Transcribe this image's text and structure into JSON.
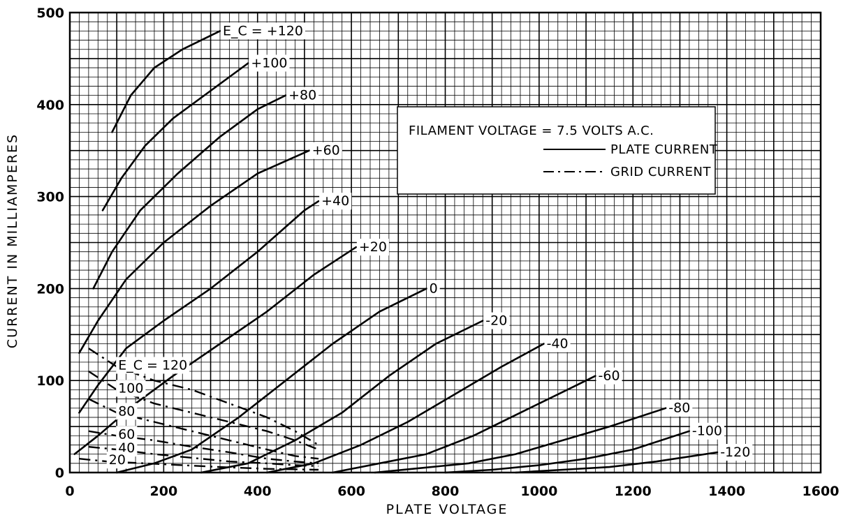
{
  "chart_data": {
    "type": "line",
    "xlabel": "PLATE VOLTAGE",
    "ylabel": "CURRENT IN MILLIAMPERES",
    "xlim": [
      0,
      1600
    ],
    "ylim": [
      0,
      500
    ],
    "x_ticks": [
      "0",
      "200",
      "400",
      "600",
      "800",
      "1000",
      "1200",
      "1400",
      "1600"
    ],
    "y_ticks": [
      "0",
      "100",
      "200",
      "300",
      "400",
      "500"
    ],
    "grid": true,
    "legend": {
      "position": "top-right",
      "title": "FILAMENT VOLTAGE = 7.5 VOLTS A.C.",
      "entries": [
        {
          "label": "PLATE CURRENT",
          "style": "solid"
        },
        {
          "label": "GRID CURRENT",
          "style": "dash-dot"
        }
      ]
    },
    "plate_current": [
      {
        "label": "E_C = +120",
        "points": [
          [
            90,
            370
          ],
          [
            130,
            410
          ],
          [
            180,
            440
          ],
          [
            240,
            460
          ],
          [
            320,
            480
          ]
        ]
      },
      {
        "label": "+100",
        "points": [
          [
            70,
            285
          ],
          [
            110,
            320
          ],
          [
            160,
            355
          ],
          [
            220,
            385
          ],
          [
            300,
            415
          ],
          [
            380,
            445
          ]
        ]
      },
      {
        "label": "+80",
        "points": [
          [
            50,
            200
          ],
          [
            90,
            240
          ],
          [
            150,
            285
          ],
          [
            230,
            325
          ],
          [
            320,
            365
          ],
          [
            400,
            395
          ],
          [
            460,
            410
          ]
        ]
      },
      {
        "label": "+60",
        "points": [
          [
            20,
            130
          ],
          [
            60,
            165
          ],
          [
            120,
            210
          ],
          [
            200,
            250
          ],
          [
            300,
            290
          ],
          [
            400,
            325
          ],
          [
            510,
            350
          ]
        ]
      },
      {
        "label": "+40",
        "points": [
          [
            20,
            65
          ],
          [
            60,
            95
          ],
          [
            120,
            135
          ],
          [
            200,
            165
          ],
          [
            300,
            200
          ],
          [
            400,
            240
          ],
          [
            500,
            285
          ],
          [
            530,
            295
          ]
        ]
      },
      {
        "label": "+20",
        "points": [
          [
            10,
            20
          ],
          [
            60,
            40
          ],
          [
            140,
            75
          ],
          [
            220,
            105
          ],
          [
            320,
            140
          ],
          [
            420,
            175
          ],
          [
            520,
            215
          ],
          [
            610,
            245
          ]
        ]
      },
      {
        "label": "0",
        "points": [
          [
            100,
            0
          ],
          [
            180,
            10
          ],
          [
            260,
            25
          ],
          [
            360,
            60
          ],
          [
            460,
            100
          ],
          [
            560,
            140
          ],
          [
            660,
            175
          ],
          [
            760,
            200
          ]
        ]
      },
      {
        "label": "-20",
        "points": [
          [
            280,
            0
          ],
          [
            380,
            10
          ],
          [
            480,
            35
          ],
          [
            580,
            65
          ],
          [
            680,
            105
          ],
          [
            780,
            140
          ],
          [
            880,
            165
          ]
        ]
      },
      {
        "label": "-40",
        "points": [
          [
            420,
            0
          ],
          [
            520,
            10
          ],
          [
            620,
            30
          ],
          [
            720,
            55
          ],
          [
            820,
            85
          ],
          [
            920,
            115
          ],
          [
            1010,
            140
          ]
        ]
      },
      {
        "label": "-60",
        "points": [
          [
            560,
            0
          ],
          [
            660,
            10
          ],
          [
            760,
            20
          ],
          [
            860,
            40
          ],
          [
            960,
            65
          ],
          [
            1060,
            90
          ],
          [
            1120,
            105
          ]
        ]
      },
      {
        "label": "-80",
        "points": [
          [
            650,
            0
          ],
          [
            750,
            5
          ],
          [
            850,
            10
          ],
          [
            950,
            20
          ],
          [
            1050,
            35
          ],
          [
            1150,
            50
          ],
          [
            1270,
            70
          ]
        ]
      },
      {
        "label": "-100",
        "points": [
          [
            800,
            0
          ],
          [
            900,
            3
          ],
          [
            1000,
            8
          ],
          [
            1100,
            15
          ],
          [
            1200,
            25
          ],
          [
            1320,
            45
          ]
        ]
      },
      {
        "label": "-120",
        "points": [
          [
            950,
            0
          ],
          [
            1050,
            3
          ],
          [
            1150,
            6
          ],
          [
            1250,
            12
          ],
          [
            1380,
            22
          ]
        ]
      }
    ],
    "grid_current": [
      {
        "label": "E_C = 120",
        "points": [
          [
            40,
            135
          ],
          [
            100,
            115
          ],
          [
            180,
            100
          ],
          [
            260,
            90
          ],
          [
            340,
            75
          ],
          [
            420,
            60
          ],
          [
            480,
            45
          ],
          [
            530,
            30
          ]
        ]
      },
      {
        "label": "100",
        "points": [
          [
            40,
            110
          ],
          [
            100,
            90
          ],
          [
            180,
            75
          ],
          [
            260,
            65
          ],
          [
            340,
            55
          ],
          [
            420,
            45
          ],
          [
            480,
            35
          ],
          [
            530,
            25
          ]
        ]
      },
      {
        "label": "80",
        "points": [
          [
            40,
            80
          ],
          [
            100,
            65
          ],
          [
            180,
            55
          ],
          [
            260,
            45
          ],
          [
            340,
            35
          ],
          [
            420,
            25
          ],
          [
            480,
            18
          ],
          [
            530,
            15
          ]
        ]
      },
      {
        "label": "60",
        "points": [
          [
            40,
            45
          ],
          [
            100,
            40
          ],
          [
            180,
            35
          ],
          [
            260,
            28
          ],
          [
            340,
            22
          ],
          [
            420,
            15
          ],
          [
            480,
            12
          ],
          [
            530,
            10
          ]
        ]
      },
      {
        "label": "40",
        "points": [
          [
            40,
            28
          ],
          [
            100,
            25
          ],
          [
            180,
            20
          ],
          [
            260,
            16
          ],
          [
            340,
            12
          ],
          [
            420,
            10
          ],
          [
            480,
            8
          ],
          [
            530,
            7
          ]
        ]
      },
      {
        "label": "20",
        "points": [
          [
            20,
            15
          ],
          [
            80,
            12
          ],
          [
            160,
            10
          ],
          [
            240,
            8
          ],
          [
            320,
            6
          ],
          [
            420,
            4
          ],
          [
            530,
            3
          ]
        ]
      }
    ]
  }
}
